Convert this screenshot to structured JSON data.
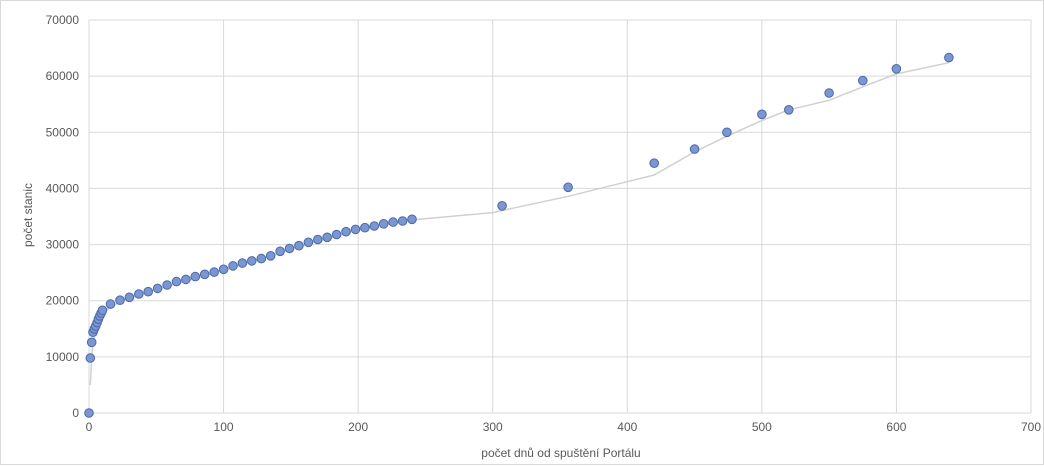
{
  "chart_data": {
    "type": "scatter",
    "title": "",
    "xlabel": "počet dnů od spuštění Portálu",
    "ylabel": "počet stanic",
    "xlim": [
      0,
      700
    ],
    "ylim": [
      0,
      70000
    ],
    "x_ticks": [
      0,
      100,
      200,
      300,
      400,
      500,
      600,
      700
    ],
    "y_ticks": [
      0,
      10000,
      20000,
      30000,
      40000,
      50000,
      60000,
      70000
    ],
    "grid": true,
    "legend": "none",
    "colors": {
      "marker_fill": "#7b96d0",
      "marker_stroke": "#4a6aab",
      "trendline": "#d0d0d0",
      "grid": "#d9d9d9",
      "text": "#595959"
    },
    "series": [
      {
        "points": [
          [
            0,
            0
          ],
          [
            1,
            9800
          ],
          [
            2,
            12600
          ],
          [
            3,
            14400
          ],
          [
            4,
            15000
          ],
          [
            5,
            15500
          ],
          [
            6,
            16100
          ],
          [
            7,
            16700
          ],
          [
            8,
            17300
          ],
          [
            9,
            17800
          ],
          [
            10,
            18300
          ],
          [
            16,
            19400
          ],
          [
            23,
            20100
          ],
          [
            30,
            20600
          ],
          [
            37,
            21200
          ],
          [
            44,
            21600
          ],
          [
            51,
            22200
          ],
          [
            58,
            22800
          ],
          [
            65,
            23400
          ],
          [
            72,
            23800
          ],
          [
            79,
            24300
          ],
          [
            86,
            24700
          ],
          [
            93,
            25100
          ],
          [
            100,
            25600
          ],
          [
            107,
            26200
          ],
          [
            114,
            26700
          ],
          [
            121,
            27100
          ],
          [
            128,
            27500
          ],
          [
            135,
            28000
          ],
          [
            142,
            28800
          ],
          [
            149,
            29300
          ],
          [
            156,
            29800
          ],
          [
            163,
            30400
          ],
          [
            170,
            30900
          ],
          [
            177,
            31300
          ],
          [
            184,
            31800
          ],
          [
            191,
            32300
          ],
          [
            198,
            32700
          ],
          [
            205,
            33000
          ],
          [
            212,
            33300
          ],
          [
            219,
            33700
          ],
          [
            226,
            34000
          ],
          [
            233,
            34200
          ],
          [
            240,
            34500
          ],
          [
            307,
            36900
          ],
          [
            356,
            40200
          ],
          [
            420,
            44500
          ],
          [
            450,
            47000
          ],
          [
            474,
            50000
          ],
          [
            500,
            53200
          ],
          [
            520,
            54000
          ],
          [
            550,
            57000
          ],
          [
            575,
            59200
          ],
          [
            600,
            61300
          ],
          [
            639,
            63300
          ]
        ]
      }
    ],
    "trendline": [
      [
        1,
        5000
      ],
      [
        2,
        9800
      ],
      [
        3,
        12600
      ],
      [
        5,
        14700
      ],
      [
        8,
        16400
      ],
      [
        12,
        18200
      ],
      [
        25,
        20100
      ],
      [
        50,
        22000
      ],
      [
        100,
        25400
      ],
      [
        150,
        29200
      ],
      [
        200,
        32600
      ],
      [
        240,
        34400
      ],
      [
        300,
        35700
      ],
      [
        356,
        38600
      ],
      [
        420,
        42400
      ],
      [
        450,
        46500
      ],
      [
        474,
        49300
      ],
      [
        500,
        52100
      ],
      [
        520,
        54000
      ],
      [
        550,
        55700
      ],
      [
        575,
        58100
      ],
      [
        600,
        60400
      ],
      [
        639,
        62400
      ]
    ]
  }
}
